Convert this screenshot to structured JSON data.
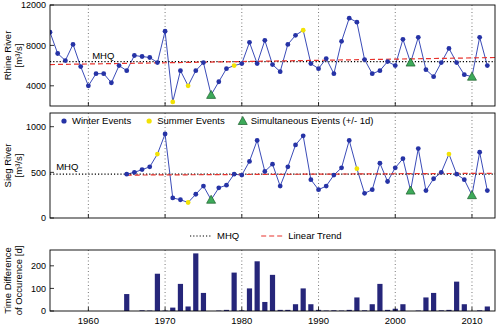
{
  "chart_data": [
    {
      "type": "line",
      "ylabel": [
        "Rhine River",
        "[m³/s]"
      ],
      "xlim": [
        1955,
        2013
      ],
      "xticks": [
        1960,
        1970,
        1980,
        1990,
        2000,
        2010
      ],
      "ylim": [
        2000,
        12000
      ],
      "yticks": [
        4000,
        8000,
        12000
      ],
      "grid": true,
      "tick_labels": "y",
      "annotations": [
        {
          "text": "MHQ",
          "x": 1960.5,
          "y": 6700
        }
      ],
      "series": [
        {
          "type": "line",
          "color": "#3b4cb8",
          "x": [
            1955,
            1956,
            1957,
            1958,
            1959,
            1960,
            1961,
            1962,
            1963,
            1964,
            1965,
            1966,
            1967,
            1968,
            1969,
            1970,
            1971,
            1972,
            1973,
            1974,
            1975,
            1976,
            1977,
            1978,
            1979,
            1980,
            1981,
            1982,
            1983,
            1984,
            1985,
            1986,
            1987,
            1988,
            1989,
            1990,
            1991,
            1992,
            1993,
            1994,
            1995,
            1996,
            1997,
            1998,
            1999,
            2000,
            2001,
            2002,
            2003,
            2004,
            2005,
            2006,
            2007,
            2008,
            2009,
            2010,
            2011,
            2012
          ],
          "values": [
            9300,
            7200,
            6500,
            8100,
            5900,
            4000,
            5200,
            5200,
            4300,
            6000,
            5500,
            7000,
            6900,
            6800,
            6300,
            9400,
            2400,
            5500,
            4000,
            5500,
            6300,
            3100,
            4400,
            5700,
            6000,
            6200,
            8300,
            6200,
            8500,
            6100,
            5400,
            8100,
            9000,
            9500,
            6200,
            5700,
            6700,
            5200,
            8400,
            10700,
            10300,
            6600,
            5200,
            5500,
            6400,
            6000,
            8600,
            6300,
            8800,
            5600,
            4900,
            6300,
            7700,
            6300,
            5100,
            4900,
            8800,
            6000
          ]
        },
        {
          "type": "scatter",
          "marker": "circle",
          "color": "#2633a6",
          "x": [
            1955,
            1956,
            1957,
            1958,
            1959,
            1960,
            1961,
            1962,
            1963,
            1964,
            1965,
            1966,
            1967,
            1968,
            1969,
            1970,
            1972,
            1974,
            1975,
            1977,
            1978,
            1980,
            1981,
            1982,
            1983,
            1984,
            1985,
            1986,
            1987,
            1989,
            1990,
            1991,
            1992,
            1993,
            1994,
            1995,
            1996,
            1997,
            1998,
            1999,
            2000,
            2001,
            2003,
            2004,
            2005,
            2006,
            2007,
            2008,
            2009,
            2011,
            2012
          ],
          "values": [
            9300,
            7200,
            6500,
            8100,
            5900,
            4000,
            5200,
            5200,
            4300,
            6000,
            5500,
            7000,
            6900,
            6800,
            6300,
            9400,
            5500,
            5500,
            6300,
            4400,
            5700,
            6200,
            8300,
            6200,
            8500,
            6100,
            5400,
            8100,
            9000,
            6200,
            5700,
            6700,
            5200,
            8400,
            10700,
            10300,
            6600,
            5200,
            5500,
            6400,
            6000,
            8600,
            8800,
            5600,
            4900,
            6300,
            7700,
            6300,
            5100,
            8800,
            6000
          ]
        },
        {
          "type": "scatter",
          "marker": "circle",
          "color": "#f2e205",
          "x": [
            1971,
            1973,
            1979,
            1988
          ],
          "values": [
            2400,
            4000,
            6000,
            9500
          ]
        },
        {
          "type": "scatter",
          "marker": "triangle",
          "color": "#3daa5a",
          "x": [
            1976,
            2002,
            2010
          ],
          "values": [
            3100,
            6300,
            4900
          ]
        },
        {
          "type": "line",
          "line_style": "dotted",
          "color": "#000000",
          "x": [
            1955,
            2013
          ],
          "values": [
            6400,
            6400
          ]
        },
        {
          "type": "line",
          "line_style": "dashed",
          "color": "#e8322c",
          "x": [
            1955,
            2013
          ],
          "values": [
            6100,
            6800
          ]
        }
      ]
    },
    {
      "type": "line",
      "ylabel": [
        "Sieg River",
        "[m³/s]"
      ],
      "xlim": [
        1955,
        2013
      ],
      "xticks": [
        1960,
        1970,
        1980,
        1990,
        2000,
        2010
      ],
      "ylim": [
        0,
        1150
      ],
      "yticks": [
        0,
        500,
        1000
      ],
      "grid": true,
      "tick_labels": "y",
      "legend": "top",
      "annotations": [
        {
          "text": "MHQ",
          "x": 1955.8,
          "y": 530
        }
      ],
      "series": [
        {
          "type": "line",
          "color": "#3b4cb8",
          "x": [
            1965,
            1966,
            1967,
            1968,
            1969,
            1970,
            1971,
            1972,
            1973,
            1974,
            1975,
            1976,
            1977,
            1978,
            1979,
            1980,
            1981,
            1982,
            1983,
            1984,
            1985,
            1986,
            1987,
            1988,
            1989,
            1990,
            1991,
            1992,
            1993,
            1994,
            1995,
            1996,
            1997,
            1998,
            1999,
            2000,
            2001,
            2002,
            2003,
            2004,
            2005,
            2006,
            2007,
            2008,
            2009,
            2010,
            2011,
            2012
          ],
          "values": [
            480,
            500,
            530,
            560,
            700,
            920,
            220,
            200,
            170,
            260,
            350,
            200,
            330,
            360,
            480,
            470,
            620,
            850,
            510,
            590,
            350,
            560,
            800,
            900,
            420,
            310,
            350,
            470,
            550,
            850,
            540,
            270,
            310,
            600,
            400,
            550,
            650,
            300,
            760,
            300,
            430,
            500,
            700,
            480,
            420,
            250,
            720,
            300
          ]
        },
        {
          "name": "Winter Events",
          "type": "scatter",
          "marker": "circle",
          "color": "#2633a6",
          "x": [
            1965,
            1966,
            1967,
            1968,
            1970,
            1971,
            1972,
            1974,
            1975,
            1977,
            1978,
            1979,
            1980,
            1981,
            1982,
            1983,
            1984,
            1985,
            1986,
            1987,
            1988,
            1989,
            1990,
            1991,
            1992,
            1993,
            1994,
            1996,
            1997,
            1998,
            1999,
            2000,
            2001,
            2003,
            2004,
            2005,
            2006,
            2008,
            2009,
            2011,
            2012
          ],
          "values": [
            480,
            500,
            530,
            560,
            920,
            220,
            200,
            260,
            350,
            330,
            360,
            480,
            470,
            620,
            850,
            510,
            590,
            350,
            560,
            800,
            900,
            420,
            310,
            350,
            470,
            550,
            850,
            270,
            310,
            600,
            400,
            550,
            650,
            760,
            300,
            430,
            500,
            480,
            420,
            720,
            300
          ]
        },
        {
          "name": "Summer Events",
          "type": "scatter",
          "marker": "circle",
          "color": "#f2e205",
          "x": [
            1969,
            1973,
            1995,
            2007
          ],
          "values": [
            700,
            170,
            540,
            700
          ]
        },
        {
          "name": "Simultaneous Events (+/- 1d)",
          "type": "scatter",
          "marker": "triangle",
          "color": "#3daa5a",
          "x": [
            1976,
            2002,
            2010
          ],
          "values": [
            200,
            300,
            250
          ]
        },
        {
          "name": "MHQ",
          "type": "line",
          "line_style": "dotted",
          "color": "#000000",
          "x": [
            1955,
            2013
          ],
          "values": [
            480,
            480
          ]
        },
        {
          "name": "Linear Trend",
          "type": "line",
          "line_style": "dashed",
          "color": "#e8322c",
          "x": [
            1965,
            2013
          ],
          "values": [
            470,
            490
          ]
        }
      ]
    },
    {
      "type": "bar",
      "ylabel": [
        "Time Difference",
        "of Occurence [d]"
      ],
      "xlim": [
        1955,
        2013
      ],
      "xticks": [
        1960,
        1970,
        1980,
        1990,
        2000,
        2010
      ],
      "ylim": [
        0,
        270
      ],
      "yticks": [
        0,
        100,
        200
      ],
      "grid": true,
      "color": "#26267a",
      "x": [
        1965,
        1966,
        1967,
        1968,
        1969,
        1970,
        1971,
        1972,
        1973,
        1974,
        1975,
        1976,
        1977,
        1978,
        1979,
        1980,
        1981,
        1982,
        1983,
        1984,
        1985,
        1986,
        1987,
        1988,
        1989,
        1990,
        1991,
        1992,
        1993,
        1994,
        1995,
        1996,
        1997,
        1998,
        1999,
        2000,
        2001,
        2002,
        2003,
        2004,
        2005,
        2006,
        2007,
        2008,
        2009,
        2010,
        2011,
        2012
      ],
      "values": [
        75,
        0,
        3,
        2,
        165,
        2,
        15,
        120,
        20,
        255,
        80,
        0,
        2,
        5,
        170,
        3,
        100,
        220,
        40,
        160,
        5,
        5,
        30,
        100,
        30,
        5,
        2,
        3,
        2,
        5,
        60,
        3,
        30,
        120,
        5,
        10,
        30,
        0,
        2,
        60,
        80,
        3,
        5,
        130,
        30,
        0,
        3,
        20
      ]
    }
  ]
}
